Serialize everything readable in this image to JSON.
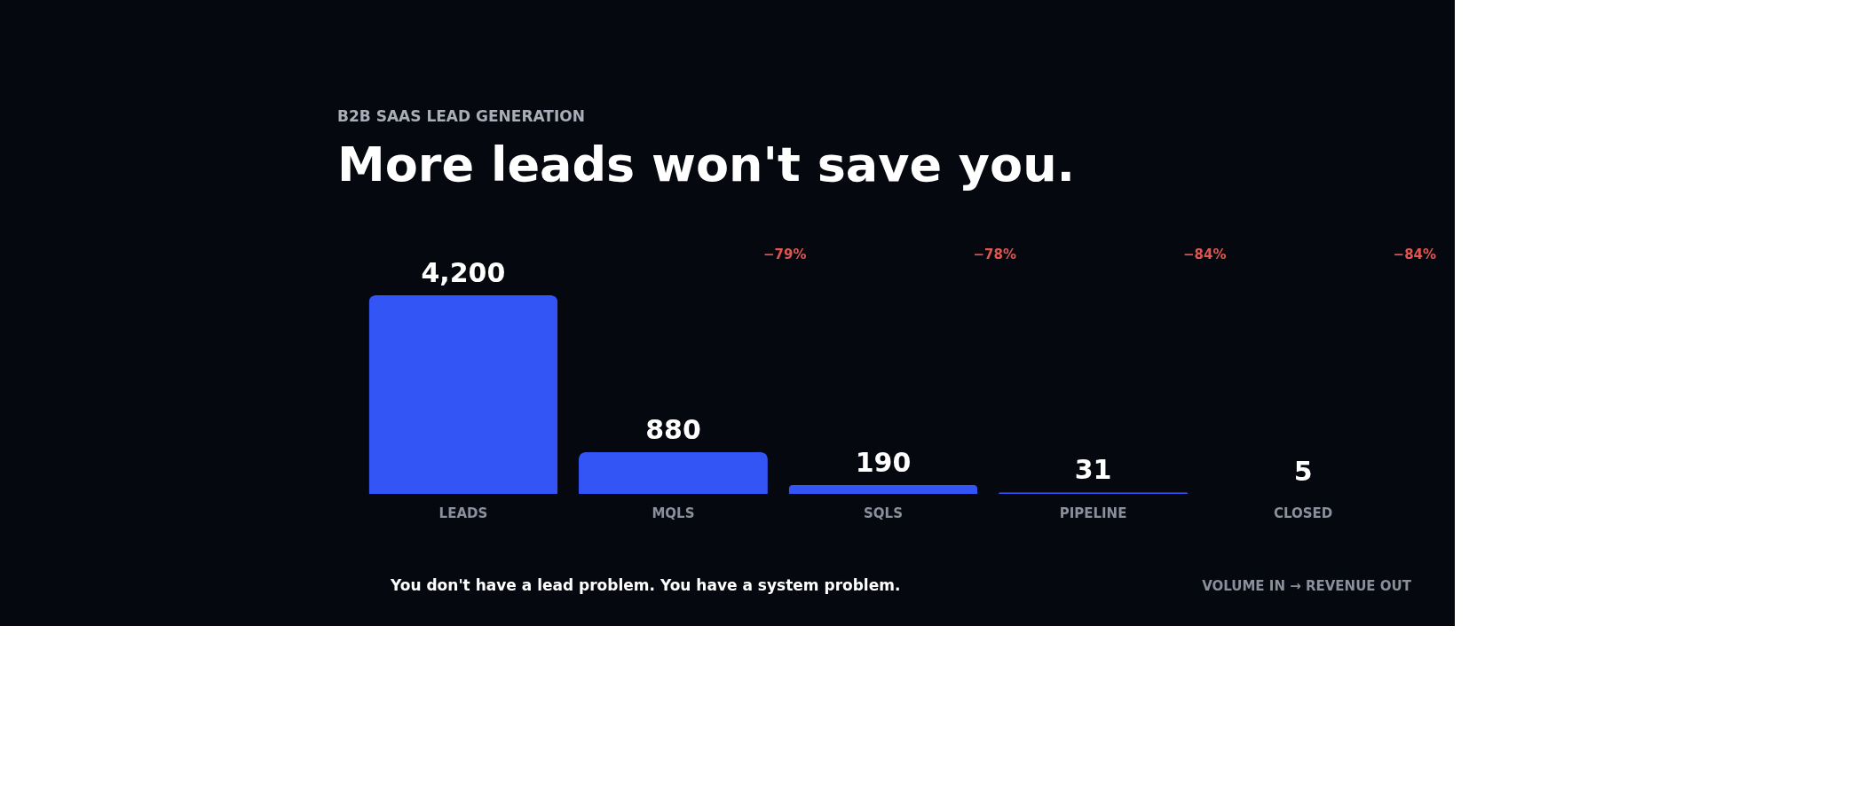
{
  "chart_data": {
    "type": "bar",
    "title": "More leads won't save you.",
    "subtitle": "B2B SAAS LEAD GENERATION",
    "categories": [
      "LEADS",
      "MQLS",
      "SQLS",
      "PIPELINE",
      "CLOSED"
    ],
    "values": [
      4200,
      880,
      190,
      31,
      5
    ],
    "color": "#3355f5",
    "value_labels": [
      "4,200",
      "880",
      "190",
      "31",
      "5"
    ],
    "annotations": [
      "−79%",
      "−78%",
      "−84%",
      "−84%",
      "You don't have a lead problem. You have a system problem.",
      "VOLUME IN → REVENUE OUT"
    ]
  }
}
